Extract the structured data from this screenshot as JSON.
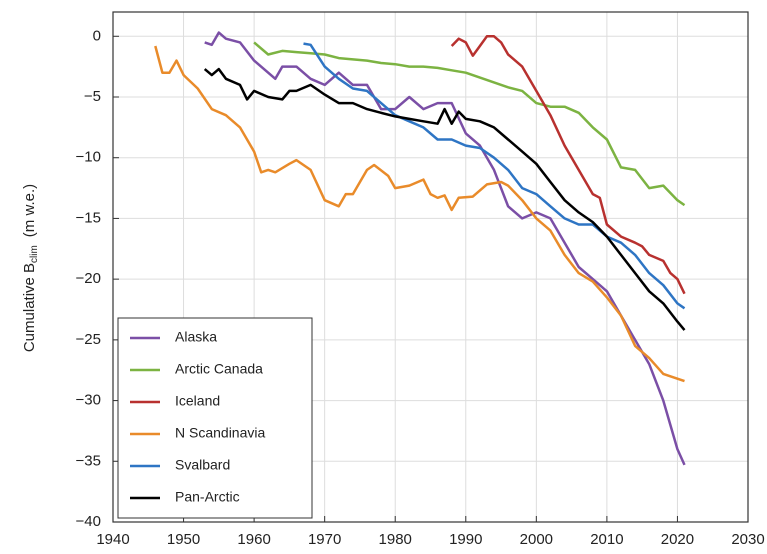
{
  "chart_data": {
    "type": "line",
    "ylabel": "Cumulative B",
    "ylabel_subscript": "clim",
    "ylabel_units": "(m w.e.)",
    "xlim": [
      1940,
      2030
    ],
    "xticks": [
      1940,
      1950,
      1960,
      1970,
      1980,
      1990,
      2000,
      2010,
      2020,
      2030
    ],
    "ylim": [
      -40,
      2
    ],
    "yticks": [
      {
        "value": -40,
        "label": "−40"
      },
      {
        "value": -35,
        "label": "−35"
      },
      {
        "value": -30,
        "label": "−30"
      },
      {
        "value": -25,
        "label": "−25"
      },
      {
        "value": -20,
        "label": "−20"
      },
      {
        "value": -15,
        "label": "−15"
      },
      {
        "value": -10,
        "label": "−10"
      },
      {
        "value": -5,
        "label": "−5"
      },
      0
    ],
    "grid": true,
    "legend": "lower left",
    "series": [
      {
        "name": "Alaska",
        "color": "#7b4fa6",
        "x": [
          1953,
          1954,
          1955,
          1956,
          1958,
          1960,
          1962,
          1963,
          1964,
          1966,
          1968,
          1970,
          1972,
          1974,
          1976,
          1978,
          1980,
          1982,
          1984,
          1986,
          1988,
          1990,
          1992,
          1994,
          1996,
          1998,
          2000,
          2002,
          2004,
          2006,
          2008,
          2010,
          2012,
          2014,
          2016,
          2018,
          2020,
          2021
        ],
        "values": [
          -0.5,
          -0.7,
          0.3,
          -0.2,
          -0.5,
          -2,
          -3,
          -3.5,
          -2.5,
          -2.5,
          -3.5,
          -4,
          -3,
          -4,
          -4,
          -6,
          -6,
          -5,
          -6,
          -5.5,
          -5.5,
          -8,
          -9,
          -11,
          -14,
          -15,
          -14.5,
          -15,
          -17,
          -19,
          -20,
          -21,
          -23,
          -25,
          -27,
          -30,
          -34,
          -35.3
        ]
      },
      {
        "name": "Arctic Canada",
        "color": "#7cb342",
        "x": [
          1960,
          1962,
          1964,
          1966,
          1968,
          1970,
          1972,
          1974,
          1976,
          1978,
          1980,
          1982,
          1984,
          1986,
          1988,
          1990,
          1992,
          1994,
          1996,
          1998,
          2000,
          2002,
          2004,
          2006,
          2008,
          2010,
          2012,
          2014,
          2016,
          2018,
          2020,
          2021
        ],
        "values": [
          -0.5,
          -1.5,
          -1.2,
          -1.3,
          -1.4,
          -1.5,
          -1.8,
          -1.9,
          -2,
          -2.2,
          -2.3,
          -2.5,
          -2.5,
          -2.6,
          -2.8,
          -3,
          -3.4,
          -3.8,
          -4.2,
          -4.5,
          -5.5,
          -5.8,
          -5.8,
          -6.3,
          -7.5,
          -8.5,
          -10.8,
          -11,
          -12.5,
          -12.3,
          -13.5,
          -13.9
        ]
      },
      {
        "name": "Iceland",
        "color": "#b8312f",
        "x": [
          1988,
          1989,
          1990,
          1991,
          1992,
          1993,
          1994,
          1995,
          1996,
          1998,
          2000,
          2002,
          2004,
          2006,
          2008,
          2009,
          2010,
          2012,
          2014,
          2015,
          2016,
          2018,
          2019,
          2020,
          2021
        ],
        "values": [
          -0.8,
          -0.2,
          -0.5,
          -1.6,
          -0.8,
          0,
          0,
          -0.5,
          -1.5,
          -2.5,
          -4.5,
          -6.5,
          -9,
          -11,
          -13,
          -13.3,
          -15.5,
          -16.5,
          -17,
          -17.3,
          -18,
          -18.5,
          -19.5,
          -20,
          -21.2
        ]
      },
      {
        "name": "N Scandinavia",
        "color": "#e98b2a",
        "x": [
          1946,
          1947,
          1948,
          1949,
          1950,
          1952,
          1954,
          1956,
          1958,
          1960,
          1961,
          1962,
          1963,
          1965,
          1966,
          1968,
          1970,
          1972,
          1973,
          1974,
          1976,
          1977,
          1979,
          1980,
          1982,
          1984,
          1985,
          1986,
          1987,
          1988,
          1989,
          1991,
          1993,
          1995,
          1996,
          1998,
          2000,
          2002,
          2004,
          2006,
          2008,
          2010,
          2012,
          2014,
          2016,
          2018,
          2020,
          2021
        ],
        "values": [
          -0.8,
          -3,
          -3,
          -2,
          -3.2,
          -4.3,
          -6,
          -6.5,
          -7.5,
          -9.5,
          -11.2,
          -11,
          -11.2,
          -10.5,
          -10.2,
          -11,
          -13.5,
          -14,
          -13,
          -13,
          -11,
          -10.6,
          -11.5,
          -12.5,
          -12.3,
          -11.8,
          -13,
          -13.3,
          -13.1,
          -14.3,
          -13.3,
          -13.2,
          -12.2,
          -12,
          -12.3,
          -13.5,
          -15,
          -16,
          -18,
          -19.5,
          -20.2,
          -21.5,
          -23,
          -25.5,
          -26.5,
          -27.8,
          -28.2,
          -28.4
        ]
      },
      {
        "name": "Svalbard",
        "color": "#2e75c4",
        "x": [
          1967,
          1968,
          1970,
          1972,
          1974,
          1976,
          1978,
          1980,
          1982,
          1984,
          1986,
          1988,
          1990,
          1992,
          1994,
          1996,
          1998,
          2000,
          2002,
          2004,
          2006,
          2008,
          2010,
          2012,
          2014,
          2016,
          2018,
          2020,
          2021
        ],
        "values": [
          -0.6,
          -0.7,
          -2.5,
          -3.5,
          -4.3,
          -4.5,
          -5.5,
          -6.5,
          -7,
          -7.5,
          -8.5,
          -8.5,
          -9,
          -9.2,
          -10,
          -11,
          -12.5,
          -13,
          -14,
          -15,
          -15.5,
          -15.5,
          -16.5,
          -17,
          -18,
          -19.5,
          -20.5,
          -22,
          -22.4
        ]
      },
      {
        "name": "Pan-Arctic",
        "color": "#000000",
        "x": [
          1953,
          1954,
          1955,
          1956,
          1958,
          1959,
          1960,
          1962,
          1964,
          1965,
          1966,
          1968,
          1970,
          1972,
          1974,
          1976,
          1978,
          1980,
          1982,
          1984,
          1986,
          1987,
          1988,
          1989,
          1990,
          1992,
          1994,
          1996,
          1998,
          2000,
          2002,
          2004,
          2006,
          2008,
          2010,
          2012,
          2014,
          2016,
          2018,
          2020,
          2021
        ],
        "values": [
          -2.7,
          -3.2,
          -2.7,
          -3.5,
          -4,
          -5.2,
          -4.5,
          -5,
          -5.2,
          -4.5,
          -4.5,
          -4,
          -4.8,
          -5.5,
          -5.5,
          -6,
          -6.3,
          -6.6,
          -6.8,
          -7,
          -7.2,
          -6,
          -7.2,
          -6.2,
          -6.8,
          -7,
          -7.5,
          -8.5,
          -9.5,
          -10.5,
          -12,
          -13.5,
          -14.5,
          -15.3,
          -16.5,
          -18,
          -19.5,
          -21,
          -22,
          -23.5,
          -24.2
        ]
      }
    ]
  }
}
